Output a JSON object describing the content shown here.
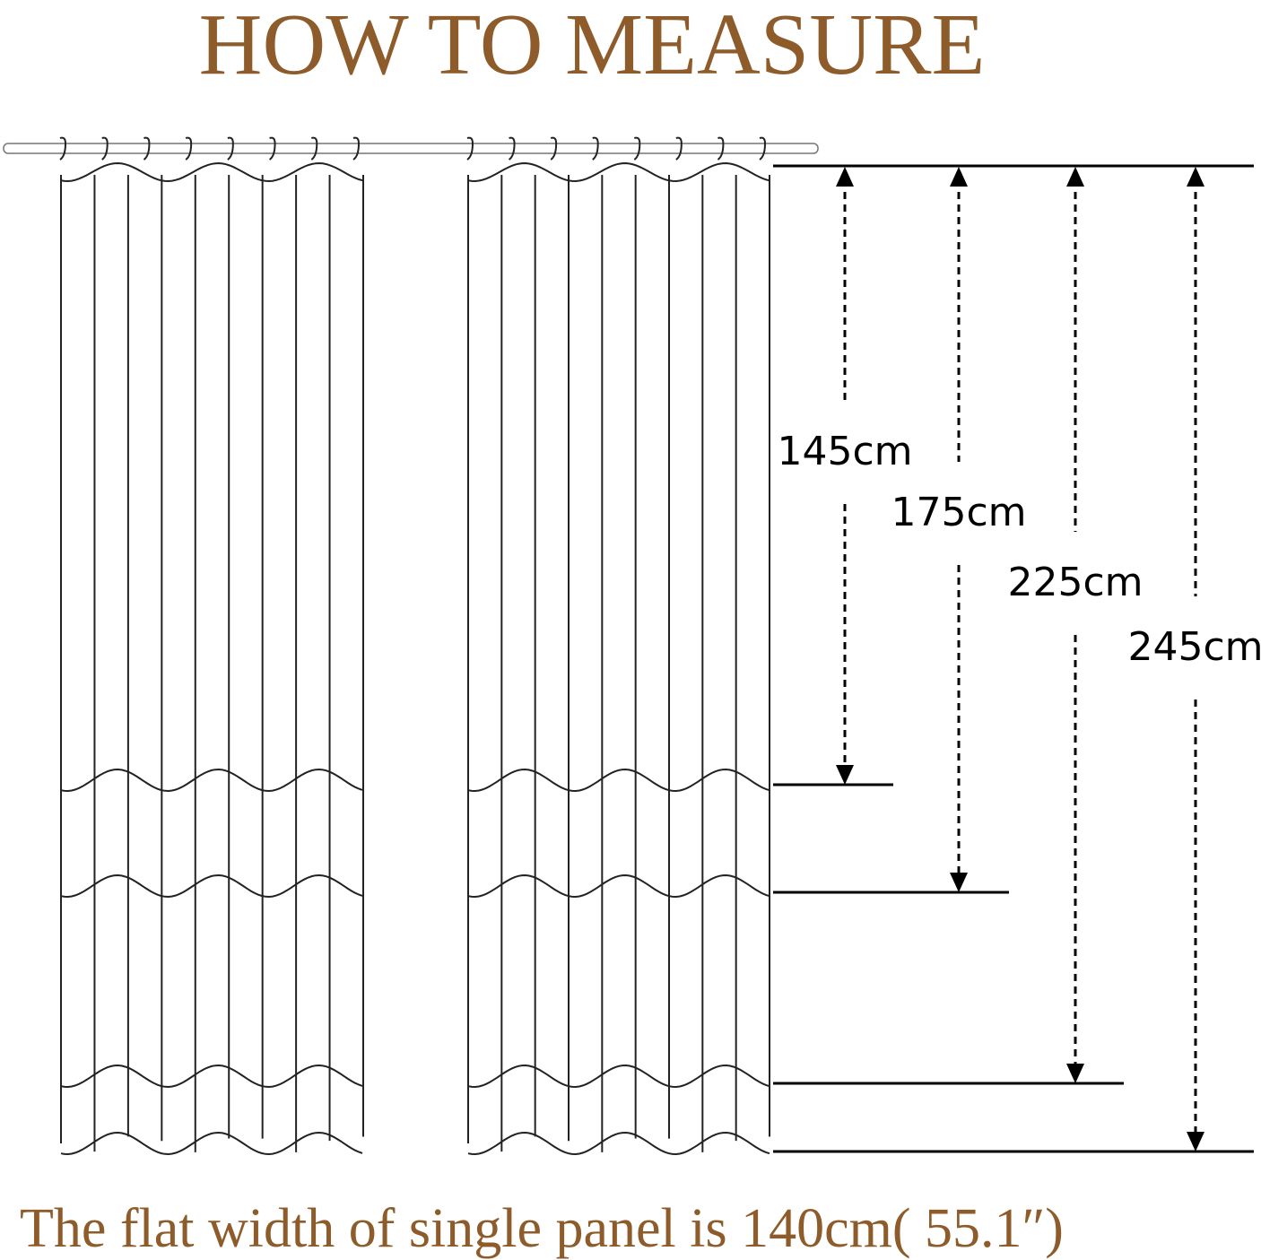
{
  "header": {
    "title": "HOW TO MEASURE"
  },
  "measurements": [
    "145cm",
    "175cm",
    "225cm",
    "245cm"
  ],
  "footer": {
    "text": "The flat width of single panel is 140cm( 55.1″)"
  }
}
